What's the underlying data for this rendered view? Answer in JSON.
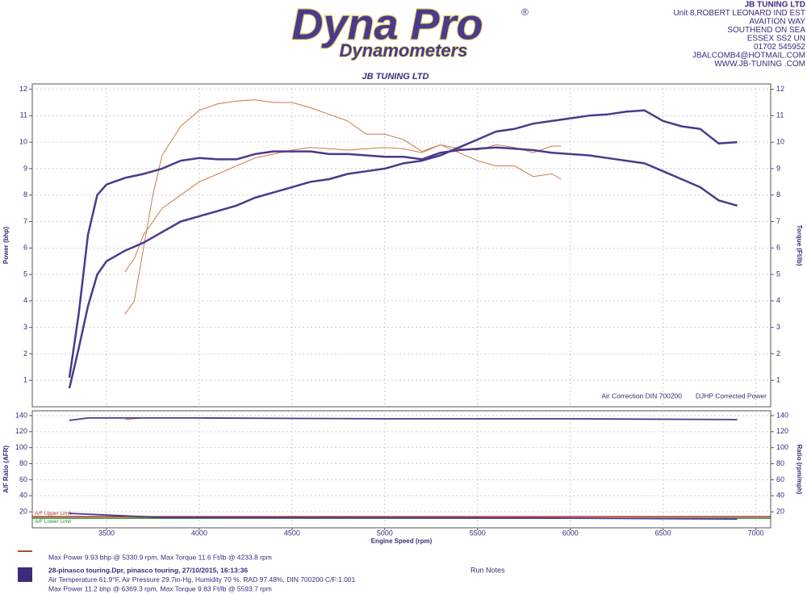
{
  "header": {
    "logo": "Dyna Pro",
    "logo_mark": "®",
    "logo_sub": "Dynamometers",
    "company": [
      "JB TUNING LTD",
      "Unit 8,ROBERT LEONARD IND EST",
      "AVAITION WAY",
      "SOUTHEND ON SEA",
      "ESSEX SS2 UN",
      "01702 545952",
      "JBALCOMB4@HOTMAIL.COM",
      "WWW.JB-TUNING .COM"
    ]
  },
  "chart_data": [
    {
      "type": "line",
      "title": "JB TUNING LTD",
      "y_label": "Power (bhp)",
      "y2_label": "Torque (Ft/lb)",
      "xlim": [
        3100,
        7080
      ],
      "ylim": [
        0,
        12.2
      ],
      "y2lim": [
        0,
        12.2
      ],
      "yticks": [
        1,
        2,
        3,
        4,
        5,
        6,
        7,
        8,
        9,
        10,
        11,
        12
      ],
      "y2ticks": [
        1,
        2,
        3,
        4,
        5,
        6,
        7,
        8,
        9,
        10,
        11,
        12
      ],
      "grid": true,
      "annotations": [
        "Air Correction DIN 700200",
        "DJHP Corrected Power"
      ],
      "series": [
        {
          "color": "#c87a4a",
          "width": 1,
          "x": [
            3600,
            3650,
            3700,
            3800,
            3900,
            4000,
            4100,
            4200,
            4300,
            4400,
            4500,
            4600,
            4700,
            4800,
            4900,
            5000,
            5100,
            5200,
            5300,
            5400,
            5500,
            5600,
            5700,
            5800,
            5900,
            5950
          ],
          "values": [
            5.1,
            5.6,
            6.5,
            7.5,
            8.0,
            8.5,
            8.8,
            9.1,
            9.4,
            9.55,
            9.7,
            9.8,
            9.75,
            9.7,
            9.75,
            9.8,
            9.75,
            9.6,
            9.9,
            9.75,
            9.7,
            9.9,
            9.8,
            9.6,
            9.85,
            9.85
          ]
        },
        {
          "color": "#c87a4a",
          "width": 1,
          "axis": "y2",
          "x": [
            3600,
            3650,
            3700,
            3750,
            3800,
            3900,
            4000,
            4100,
            4200,
            4300,
            4400,
            4500,
            4600,
            4700,
            4800,
            4900,
            5000,
            5100,
            5200,
            5300,
            5400,
            5500,
            5600,
            5700,
            5800,
            5900,
            5950
          ],
          "values": [
            3.5,
            4.0,
            6.0,
            8.0,
            9.5,
            10.6,
            11.2,
            11.45,
            11.55,
            11.6,
            11.5,
            11.5,
            11.3,
            11.05,
            10.8,
            10.3,
            10.3,
            10.1,
            9.65,
            9.9,
            9.6,
            9.3,
            9.1,
            9.1,
            8.7,
            8.8,
            8.6
          ]
        },
        {
          "color": "#4b3a8c",
          "width": 2.5,
          "x": [
            3300,
            3350,
            3400,
            3450,
            3500,
            3600,
            3700,
            3800,
            3900,
            4000,
            4100,
            4200,
            4300,
            4400,
            4500,
            4600,
            4700,
            4800,
            4900,
            5000,
            5100,
            5200,
            5300,
            5400,
            5500,
            5600,
            5700,
            5800,
            5900,
            6000,
            6100,
            6200,
            6300,
            6400,
            6500,
            6600,
            6700,
            6800,
            6900
          ],
          "values": [
            0.7,
            2.2,
            3.8,
            5.0,
            5.5,
            5.9,
            6.2,
            6.6,
            7.0,
            7.2,
            7.4,
            7.6,
            7.9,
            8.1,
            8.3,
            8.5,
            8.6,
            8.8,
            8.9,
            9.0,
            9.2,
            9.3,
            9.5,
            9.8,
            10.1,
            10.4,
            10.5,
            10.7,
            10.8,
            10.9,
            11.0,
            11.05,
            11.15,
            11.2,
            10.8,
            10.6,
            10.5,
            9.95,
            10.0
          ]
        },
        {
          "color": "#4b3a8c",
          "width": 2.5,
          "axis": "y2",
          "x": [
            3300,
            3350,
            3400,
            3450,
            3500,
            3600,
            3700,
            3800,
            3900,
            4000,
            4100,
            4200,
            4300,
            4400,
            4500,
            4600,
            4700,
            4800,
            4900,
            5000,
            5100,
            5200,
            5300,
            5400,
            5500,
            5600,
            5700,
            5800,
            5900,
            6000,
            6100,
            6200,
            6300,
            6400,
            6500,
            6600,
            6700,
            6800,
            6900
          ],
          "values": [
            1.1,
            3.5,
            6.5,
            8.0,
            8.4,
            8.65,
            8.8,
            9.0,
            9.3,
            9.4,
            9.35,
            9.35,
            9.55,
            9.65,
            9.65,
            9.65,
            9.55,
            9.55,
            9.5,
            9.45,
            9.45,
            9.35,
            9.6,
            9.7,
            9.75,
            9.8,
            9.75,
            9.7,
            9.6,
            9.55,
            9.5,
            9.4,
            9.3,
            9.2,
            8.9,
            8.6,
            8.3,
            7.8,
            7.6
          ]
        }
      ]
    },
    {
      "type": "line",
      "x_label": "Engine Speed (rpm)",
      "y_label": "A/F Ratio (AFR)",
      "y2_label": "Ratio (rpm/mph)",
      "xlim": [
        3100,
        7080
      ],
      "xticks": [
        3500,
        4000,
        4500,
        5000,
        5500,
        6000,
        6500,
        7000
      ],
      "ylim": [
        0,
        146
      ],
      "y2lim": [
        0,
        146
      ],
      "yticks": [
        20,
        40,
        60,
        80,
        100,
        120,
        140
      ],
      "y2ticks": [
        20,
        40,
        60,
        80,
        100,
        120,
        140
      ],
      "grid": true,
      "reference_lines": [
        {
          "name": "A/F Upper Limit",
          "value": 14,
          "color": "#b03020"
        },
        {
          "name": "A/F Lower Limit",
          "value": 12,
          "color": "#2e8a2e"
        }
      ],
      "series": [
        {
          "color": "#c87a4a",
          "width": 1,
          "x": [
            3600,
            3700,
            4000,
            5000,
            5950
          ],
          "values": [
            13.5,
            13,
            13,
            13,
            13
          ]
        },
        {
          "color": "#c87a4a",
          "width": 1,
          "axis": "y2",
          "x": [
            3600,
            3700,
            4000,
            5000,
            5950
          ],
          "values": [
            135,
            137,
            137,
            136,
            136
          ]
        },
        {
          "color": "#4b3a8c",
          "width": 1.8,
          "x": [
            3300,
            3400,
            3600,
            3800,
            5000,
            6000,
            6900
          ],
          "values": [
            18,
            17,
            15,
            13,
            12.5,
            12,
            11
          ]
        },
        {
          "color": "#4b3a8c",
          "width": 1.8,
          "axis": "y2",
          "x": [
            3300,
            3400,
            4000,
            5000,
            6000,
            6900
          ],
          "values": [
            134,
            137,
            137,
            136,
            136,
            135
          ]
        }
      ]
    }
  ],
  "footer": {
    "notes_label": "Run Notes",
    "runs": [
      {
        "color": "#a0522d",
        "lines": [
          "Max Power 9.93 bhp @ 5330.9 rpm, Max Torque 11.6 Ft/lb @ 4233.8 rpm"
        ]
      },
      {
        "color": "#3d2a7a",
        "lines": [
          "28-pinasco touring.Dpr,   pinasco touring,   27/10/2015,   16:13:36",
          "Air Temperature 61.9°F, Air Pressure 29.7in-Hg, Humidity 70 %, RAD 97.48%,  DIN 700200  C/F:1.001",
          "Max Power 11.2 bhp @ 6369.3 rpm, Max Torque 9.83 Ft/lb @ 5593.7 rpm"
        ]
      }
    ]
  }
}
